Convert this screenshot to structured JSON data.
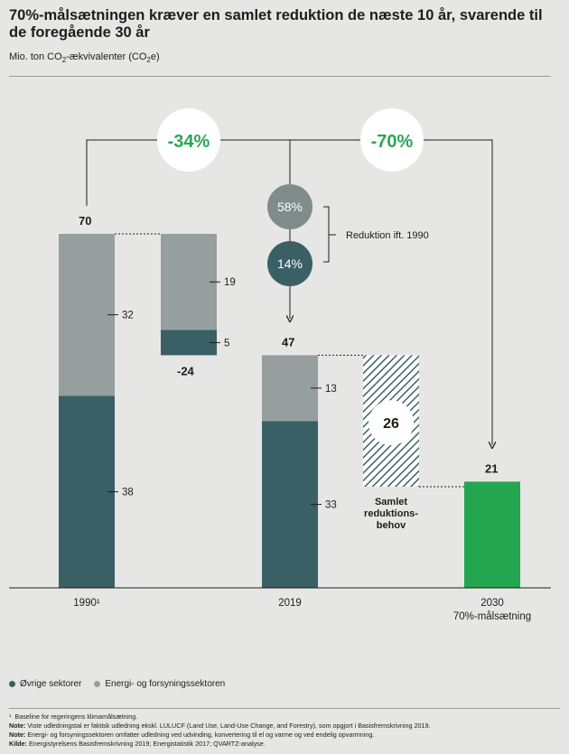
{
  "header": {
    "title": "70%-målsætningen kræver en samlet reduktion de næste 10 år, svarende til de foregående 30 år",
    "subtitle_pre": "Mio. ton CO",
    "subtitle_sub1": "2",
    "subtitle_mid": "-ækvivalenter (CO",
    "subtitle_sub2": "2",
    "subtitle_post": "e)"
  },
  "colors": {
    "dark": "#3a6066",
    "light": "#979f9e",
    "green": "#23a64f",
    "green_text": "#2aa654",
    "circle_58": "#7e8c8b",
    "circle_14": "#3a6066",
    "hatch": "#3a6066"
  },
  "chart_data": {
    "type": "bar",
    "subtype": "waterfall",
    "ylim": [
      0,
      75
    ],
    "series": [
      {
        "name": "Øvrige sektorer",
        "color": "#3a6066"
      },
      {
        "name": "Energi- og forsyningssektoren",
        "color": "#979f9e"
      }
    ],
    "bars": [
      {
        "category": "1990¹",
        "dark": 38,
        "light": 32,
        "total_label": "70",
        "dark_label": "38",
        "light_label": "32"
      },
      {
        "category": "",
        "kind": "reduction",
        "dark": 5,
        "light": 19,
        "total_label": "-24",
        "dark_label": "5",
        "light_label": "19"
      },
      {
        "category": "2019",
        "dark": 33,
        "light": 13,
        "total_label": "47",
        "dark_label": "33",
        "light_label": "13"
      },
      {
        "category": "",
        "kind": "need",
        "value": 26,
        "value_label": "26",
        "label": "Samlet reduktionsbehov"
      },
      {
        "category": "2030",
        "category_line2": "70%-målsætning",
        "green": 21,
        "total_label": "21"
      }
    ],
    "categories": [
      "1990¹",
      "2019",
      "2030"
    ],
    "need_label_lines": [
      "Samlet",
      "reduktions-",
      "behov"
    ],
    "annotations": {
      "reduction_1990_2019": "-34%",
      "reduction_1990_2030": "-70%",
      "circle_58": "58%",
      "circle_14": "14%",
      "bracket_label": "Reduktion ift. 1990"
    }
  },
  "legend": {
    "items": [
      {
        "label": "Øvrige sektorer"
      },
      {
        "label": "Energi- og forsyningssektoren"
      }
    ]
  },
  "notes": {
    "footnote_mark": "¹",
    "footnote_text": "Baseline for regeringens klimamålsætning.",
    "note1_key": "Note:",
    "note1_text": "Viste udledningstal er faktisk udledning ekskl. LULUCF (Land Use, Land-Use Change, and Forestry), som opgjort i Basisfremskrivning 2019.",
    "note2_key": "Note:",
    "note2_text": "Energi- og forsyningssektoren omfatter udledning ved udvinding, konvertering til el og varme og ved endelig opvarmning.",
    "source_key": "Kilde:",
    "source_text": "Energistyrelsens Basisfremskrivning 2019; Energistatistik 2017; QVARTZ-analyse."
  }
}
